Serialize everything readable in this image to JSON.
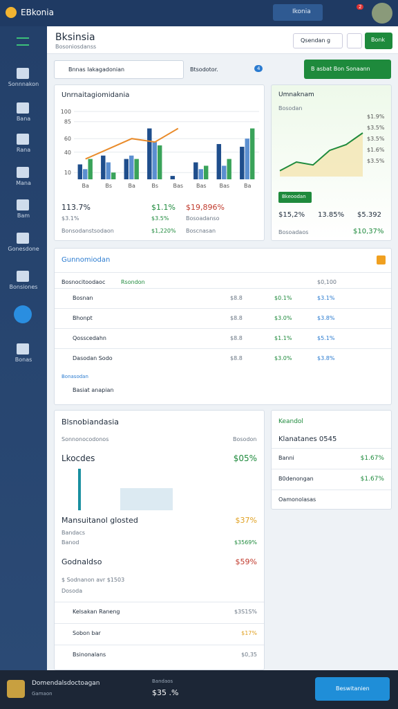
{
  "topbar": {
    "logo": "EBkonia",
    "search": "Ikonia",
    "badge": "2"
  },
  "sidebar": [
    "Sonnnakon",
    "Bana",
    "Rana",
    "Mana",
    "Bam",
    "Gonesdone",
    "Bonsiones",
    "Bonas"
  ],
  "header": {
    "title": "Bksinsia",
    "subtitle": "Bosoniosdanss",
    "filter": "Qsendan g",
    "action": "Bonk"
  },
  "toolbar": {
    "search": "Bnnas Iakagadonian",
    "label": "Btsodotor.",
    "count": "4",
    "button": "B asbat Bon Sonaann"
  },
  "card1": {
    "title": "Unrnaitagiomidania",
    "chart": {
      "type": "bar",
      "categories": [
        "Ba",
        "Bs",
        "Ba",
        "Bs",
        "Bas",
        "Bas",
        "Bas",
        "Ba"
      ],
      "series": [
        {
          "color": "#1f4e8c",
          "values": [
            22,
            35,
            30,
            75,
            5,
            25,
            52,
            48
          ]
        },
        {
          "color": "#5b8fd0",
          "values": [
            15,
            25,
            35,
            55,
            0,
            15,
            20,
            60
          ]
        },
        {
          "color": "#3aa35a",
          "values": [
            30,
            10,
            30,
            50,
            0,
            20,
            30,
            75
          ]
        }
      ],
      "line": {
        "color": "#e98b2a",
        "values": [
          30,
          45,
          60,
          55,
          75,
          null,
          null,
          null
        ]
      },
      "ylim": [
        0,
        100
      ],
      "yticks": [
        10,
        40,
        60,
        85,
        100
      ]
    },
    "stats": [
      [
        "113.7%",
        "$1.1%",
        "$19,896%"
      ],
      [
        "$3.1%",
        "$3.5%",
        "Bosoadanso"
      ],
      [
        "Bonsodanstsodaon",
        "$1,220%",
        "Boscnasan"
      ]
    ]
  },
  "card2": {
    "title": "Umnaknam",
    "subtitle": "Bosodan",
    "chart": {
      "type": "line",
      "color": "#1e8a3c",
      "values": [
        10,
        25,
        20,
        45,
        55,
        75
      ],
      "ylim": [
        0,
        100
      ]
    },
    "chart_labels": [
      "$1.9%",
      "$3.5%",
      "$3.5%",
      "$1.6%",
      "$3.5%"
    ],
    "button": "Bkeoodan",
    "stats": [
      "$15,2%",
      "13.85%",
      "$5.392"
    ],
    "foot": [
      "Bosoadaos",
      "$10,37%"
    ]
  },
  "card3": {
    "title": "Gunnomiodan",
    "head": [
      "Bosnocitoodaoc",
      "Rsondon",
      "$0,100"
    ],
    "rows": [
      [
        "Bosnan",
        "$8.8",
        "$0.1%",
        "$3.1%"
      ],
      [
        "Bhonpt",
        "$8.8",
        "$3.0%",
        "$3.8%"
      ],
      [
        "Qosscedahn",
        "$8.8",
        "$1.1%",
        "$5.1%"
      ],
      [
        "Dasodan Sodo",
        "$8.8",
        "$3.0%",
        "$3.8%"
      ]
    ],
    "foot_label": "Bonasodan",
    "foot": "Basiat anapian"
  },
  "card4": {
    "title": "Blsnobiandasia",
    "head": [
      "Sonnonocodonos",
      "Bosodon"
    ],
    "items": [
      [
        "Lkocdes",
        "$05%"
      ],
      [
        "Mansuitanol glosted",
        "$37%"
      ],
      [
        "Banod",
        "$3569%"
      ],
      [
        "Godnaldso",
        "$59%"
      ]
    ],
    "sub": [
      "Bandacs",
      "$ Sodnanon avr $1503",
      "Dosoda"
    ],
    "rows": [
      [
        "Kelsakan Raneng",
        "$3S1S%"
      ],
      [
        "Sobon bar",
        "$17%"
      ],
      [
        "Bsinonalans",
        "$0,35"
      ]
    ]
  },
  "card5": {
    "title": "Keandol",
    "headline": "Klanatanes 0545",
    "rows": [
      [
        "Banni",
        "$1.67%"
      ],
      [
        "B0denongan",
        "$1.67%"
      ],
      [
        "Oamonolasas",
        ""
      ]
    ]
  },
  "bottom": {
    "title": "Domendalsdoctoagan",
    "sub": "Gamaon",
    "label": "Bandaos",
    "value": "$35 .%",
    "button": "Beswitanien"
  }
}
